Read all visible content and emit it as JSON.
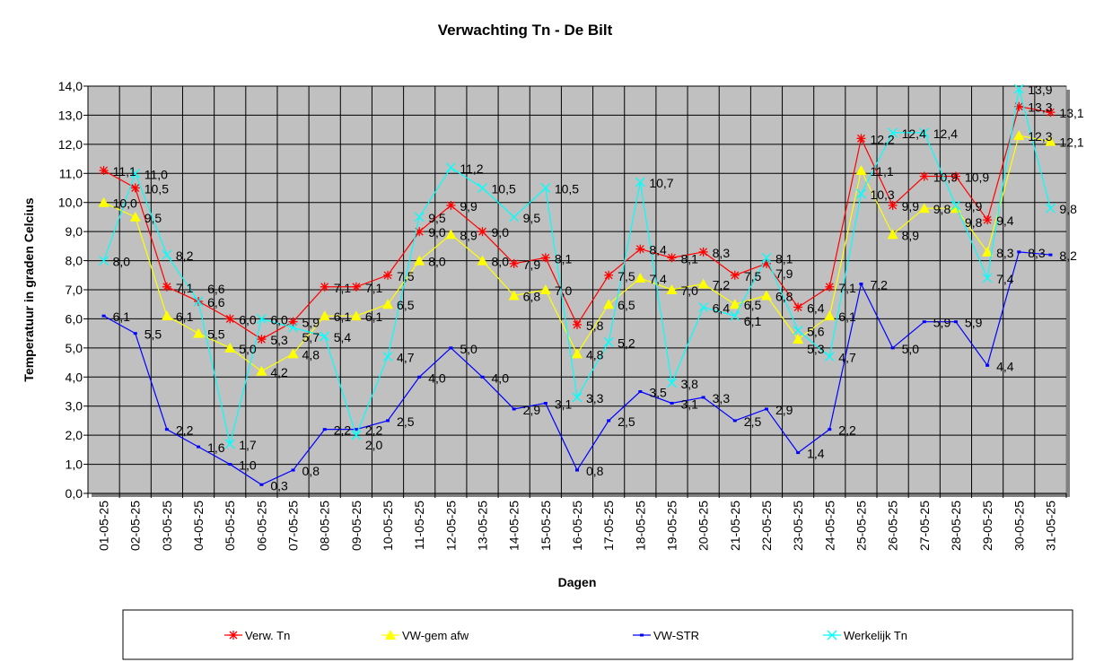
{
  "chart_data": {
    "type": "line",
    "title": "Verwachting Tn - De Bilt",
    "xlabel": "Dagen",
    "ylabel": "Temperatuur in graden Celcius",
    "ylim": [
      0,
      14
    ],
    "ytick_step": 1,
    "grid": true,
    "legend_position": "bottom",
    "plot_background": "#c0c0c0",
    "categories": [
      "01-05-25",
      "02-05-25",
      "03-05-25",
      "04-05-25",
      "05-05-25",
      "06-05-25",
      "07-05-25",
      "08-05-25",
      "09-05-25",
      "10-05-25",
      "11-05-25",
      "12-05-25",
      "13-05-25",
      "14-05-25",
      "15-05-25",
      "16-05-25",
      "17-05-25",
      "18-05-25",
      "19-05-25",
      "20-05-25",
      "21-05-25",
      "22-05-25",
      "23-05-25",
      "24-05-25",
      "25-05-25",
      "26-05-25",
      "27-05-25",
      "28-05-25",
      "29-05-25",
      "30-05-25",
      "31-05-25"
    ],
    "series": [
      {
        "name": "Verw. Tn",
        "color": "#ff0000",
        "marker": "asterisk",
        "values": [
          11.1,
          10.5,
          7.1,
          6.6,
          6.0,
          5.3,
          5.9,
          7.1,
          7.1,
          7.5,
          9.0,
          9.9,
          9.0,
          7.9,
          8.1,
          5.8,
          7.5,
          8.4,
          8.1,
          8.3,
          7.5,
          7.9,
          6.4,
          7.1,
          12.2,
          9.9,
          10.9,
          10.9,
          9.4,
          13.3,
          13.1
        ]
      },
      {
        "name": "VW-gem afw",
        "color": "#ffff00",
        "marker": "triangle",
        "values": [
          10.0,
          9.5,
          6.1,
          5.5,
          5.0,
          4.2,
          4.8,
          6.1,
          6.1,
          6.5,
          8.0,
          8.9,
          8.0,
          6.8,
          7.0,
          4.8,
          6.5,
          7.4,
          7.0,
          7.2,
          6.5,
          6.8,
          5.3,
          6.1,
          11.1,
          8.9,
          9.8,
          9.8,
          8.3,
          12.3,
          12.1
        ]
      },
      {
        "name": "VW-STR",
        "color": "#0000ff",
        "marker": "dash",
        "values": [
          6.1,
          5.5,
          2.2,
          1.6,
          1.0,
          0.3,
          0.8,
          2.2,
          2.2,
          2.5,
          4.0,
          5.0,
          4.0,
          2.9,
          3.1,
          0.8,
          2.5,
          3.5,
          3.1,
          3.3,
          2.5,
          2.9,
          1.4,
          2.2,
          7.2,
          5.0,
          5.9,
          5.9,
          4.4,
          8.3,
          8.2
        ]
      },
      {
        "name": "Werkelijk Tn",
        "color": "#00ffff",
        "marker": "x",
        "values": [
          8.0,
          11.0,
          8.2,
          6.6,
          1.7,
          6.0,
          5.7,
          5.4,
          2.0,
          4.7,
          9.5,
          11.2,
          10.5,
          9.5,
          10.5,
          3.3,
          5.2,
          10.7,
          3.8,
          6.4,
          6.1,
          8.1,
          5.6,
          4.7,
          10.3,
          12.4,
          12.4,
          9.9,
          7.4,
          13.9,
          9.8
        ]
      }
    ]
  }
}
